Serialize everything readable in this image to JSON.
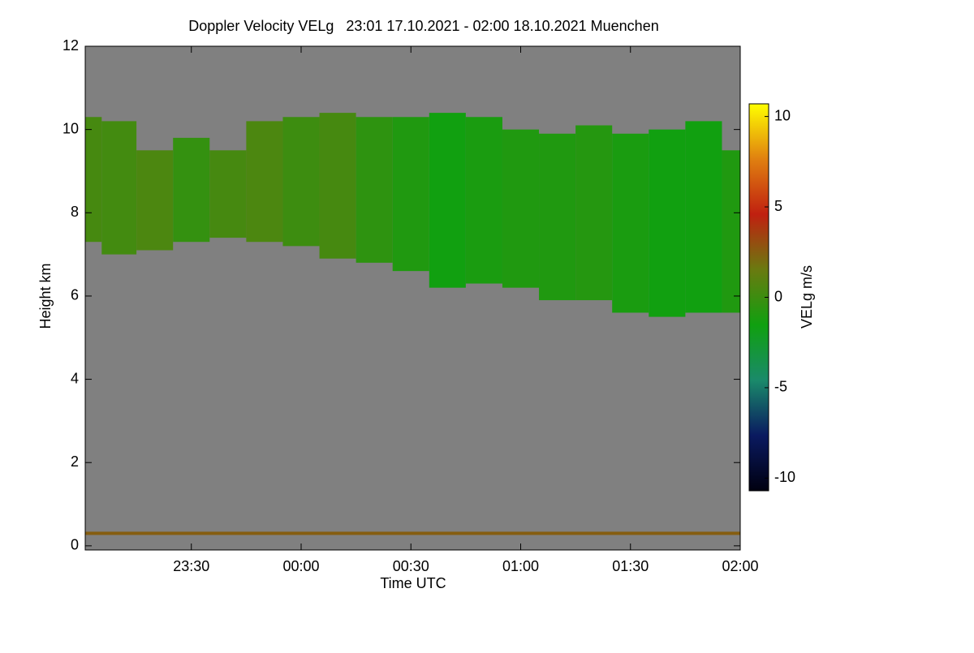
{
  "chart_data": {
    "type": "heatmap",
    "title": "Doppler Velocity VELg   23:01 17.10.2021 - 02:00 18.10.2021 Muenchen",
    "x_label": "Time UTC",
    "y_label": "Height km",
    "colorbar_label": "VELg m/s",
    "x": [
      "23:01",
      "23:10",
      "23:20",
      "23:30",
      "23:40",
      "23:50",
      "00:00",
      "00:10",
      "00:20",
      "00:30",
      "00:40",
      "00:50",
      "01:00",
      "01:10",
      "01:20",
      "01:30",
      "01:40",
      "01:50",
      "02:00"
    ],
    "cloud_top": [
      10.3,
      10.2,
      9.5,
      9.8,
      9.5,
      10.2,
      10.3,
      10.4,
      10.3,
      10.3,
      10.4,
      10.3,
      10.0,
      9.9,
      10.1,
      9.9,
      10.0,
      10.2,
      9.5
    ],
    "cloud_base": [
      7.3,
      7.0,
      7.1,
      7.3,
      7.4,
      7.3,
      7.2,
      6.9,
      6.8,
      6.6,
      6.2,
      6.3,
      6.2,
      5.9,
      5.9,
      5.6,
      5.5,
      5.6,
      5.6
    ],
    "velocity": [
      0.3,
      0.2,
      0.5,
      -0.3,
      0.3,
      0.5,
      0,
      0.3,
      -0.5,
      -1,
      -1.5,
      -1.2,
      -1,
      -1,
      -0.8,
      -1.2,
      -1.5,
      -1.5,
      -1
    ],
    "surface_layer": {
      "height": 0.3,
      "velocity": 2.5
    },
    "xlim": [
      "23:01",
      "02:00"
    ],
    "xticks": [
      "23:30",
      "00:00",
      "00:30",
      "01:00",
      "01:30",
      "02:00"
    ],
    "ylim": [
      -0.1,
      12
    ],
    "yticks": [
      0,
      2,
      4,
      6,
      8,
      10,
      12
    ],
    "zlim": [
      -10.7,
      10.7
    ],
    "zticks": [
      10,
      5,
      0,
      -5,
      -10
    ],
    "background": "#808080",
    "colorscale": [
      "#000010",
      "#0a1a60",
      "#1a8a6a",
      "#10a010",
      "#6a7a10",
      "#c02010",
      "#e08010",
      "#ffff00"
    ]
  }
}
